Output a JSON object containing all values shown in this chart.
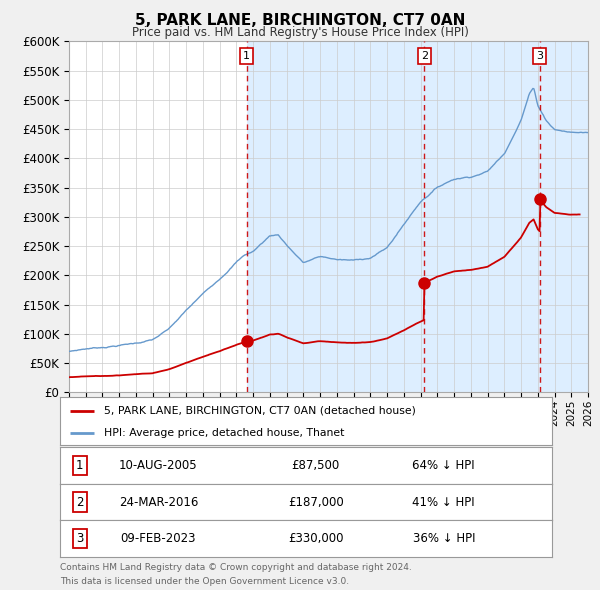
{
  "title": "5, PARK LANE, BIRCHINGTON, CT7 0AN",
  "subtitle": "Price paid vs. HM Land Registry's House Price Index (HPI)",
  "property_label": "5, PARK LANE, BIRCHINGTON, CT7 0AN (detached house)",
  "hpi_label": "HPI: Average price, detached house, Thanet",
  "footer1": "Contains HM Land Registry data © Crown copyright and database right 2024.",
  "footer2": "This data is licensed under the Open Government Licence v3.0.",
  "transactions": [
    {
      "num": 1,
      "date": "10-AUG-2005",
      "price": "£87,500",
      "pct": "64% ↓ HPI",
      "year": 2005.61
    },
    {
      "num": 2,
      "date": "24-MAR-2016",
      "price": "£187,000",
      "pct": "41% ↓ HPI",
      "year": 2016.23
    },
    {
      "num": 3,
      "date": "09-FEB-2023",
      "price": "£330,000",
      "pct": "36% ↓ HPI",
      "year": 2023.11
    }
  ],
  "transaction_prices": [
    87500,
    187000,
    330000
  ],
  "ylim": [
    0,
    600000
  ],
  "yticks": [
    0,
    50000,
    100000,
    150000,
    200000,
    250000,
    300000,
    350000,
    400000,
    450000,
    500000,
    550000,
    600000
  ],
  "xlim": [
    1995,
    2026
  ],
  "bg_color": "#f0f0f0",
  "plot_bg": "#ffffff",
  "shade_color": "#ddeeff",
  "grid_color": "#cccccc",
  "red_color": "#cc0000",
  "blue_color": "#6699cc",
  "dashed_color": "#cc0000"
}
